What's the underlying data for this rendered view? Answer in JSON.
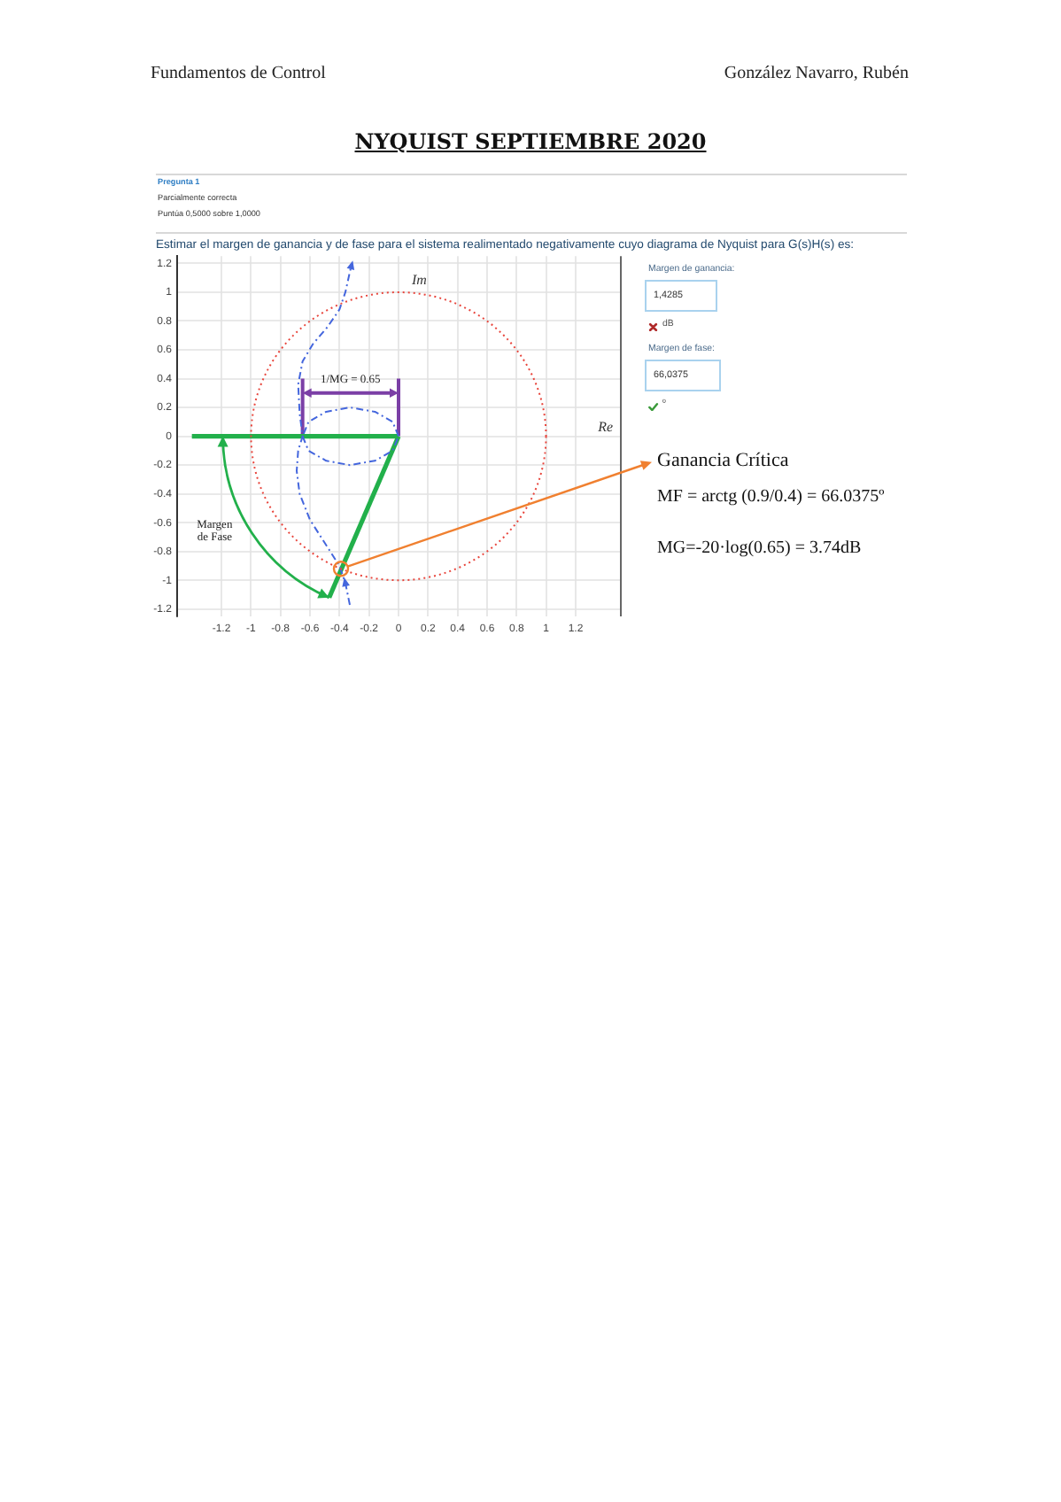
{
  "chart_data": {
    "type": "line",
    "title": "NYQUIST SEPTIEMBRE 2020",
    "xlabel": "Re",
    "ylabel": "Im",
    "xlim": [
      -1.5,
      1.5
    ],
    "xticks": [
      -1.2,
      -1,
      -0.8,
      -0.6,
      -0.4,
      -0.2,
      0,
      0.2,
      0.4,
      0.6,
      0.8,
      1,
      1.2
    ],
    "ylim": [
      -1.25,
      1.25
    ],
    "yticks": [
      -1.2,
      -1,
      -0.8,
      -0.6,
      -0.4,
      -0.2,
      0,
      0.2,
      0.4,
      0.6,
      0.8,
      1,
      1.2
    ],
    "grid": true,
    "series": [
      {
        "color": "#4466dd",
        "line_style": "dashed",
        "x": [
          -0.33,
          -0.36,
          -0.4,
          -0.5,
          -0.6,
          -0.67,
          -0.69,
          -0.68,
          -0.65,
          -0.67,
          -0.68,
          -0.65,
          -0.58,
          -0.48,
          -0.4,
          -0.36,
          -0.33,
          -0.32
        ],
        "values": [
          -1.17,
          -1.02,
          -0.9,
          -0.74,
          -0.58,
          -0.4,
          -0.24,
          -0.1,
          0,
          0.16,
          0.36,
          0.52,
          0.64,
          0.76,
          0.88,
          1,
          1.14,
          1.18
        ]
      },
      {
        "color": "#4466dd",
        "line_style": "dashed",
        "x": [
          0,
          -0.04,
          -0.16,
          -0.33,
          -0.49,
          -0.61,
          -0.65
        ],
        "values": [
          0,
          0.1,
          0.17,
          0.2,
          0.17,
          0.1,
          0
        ]
      },
      {
        "color": "#4466dd",
        "line_style": "dashed",
        "x": [
          -0.65,
          -0.61,
          -0.49,
          -0.33,
          -0.16,
          -0.04,
          0
        ],
        "values": [
          0,
          -0.1,
          -0.17,
          -0.2,
          -0.17,
          -0.1,
          0
        ]
      },
      {
        "color": "#22b04b",
        "line_style": "solid",
        "x": [
          -1.4,
          0
        ],
        "values": [
          0,
          0
        ]
      },
      {
        "color": "#22b04b",
        "line_style": "solid",
        "x": [
          0,
          -0.47
        ],
        "values": [
          0,
          -1.12
        ]
      },
      {
        "color": "#7b3fa6",
        "line_style": "solid",
        "x": [
          -0.65,
          -0.65
        ],
        "values": [
          0,
          0.4
        ]
      },
      {
        "color": "#7b3fa6",
        "line_style": "solid",
        "x": [
          0,
          0
        ],
        "values": [
          0,
          0.4
        ]
      }
    ],
    "annotations": [
      "Fundamentos de Control",
      "González Navarro, Rubén",
      "Pregunta 1",
      "Parcialmente correcta",
      "Puntúa 0,5000 sobre 1,0000",
      "Estimar el margen de ganancia y de fase para el sistema realimentado negativamente cuyo diagrama de Nyquist para G(s)H(s) es:",
      "Margen de ganancia:",
      "1,4285",
      "dB",
      "Margen de fase:",
      "66,0375",
      "º",
      "1/MG = 0.65",
      "Margen de Fase",
      {
        "text": "Ganancia Crítica",
        "x": -0.39,
        "y": -0.92
      },
      "MF = arctg (0.9/0.4) = 66.0375º",
      "MG=-20·log(0.65) = 3.74dB"
    ]
  }
}
